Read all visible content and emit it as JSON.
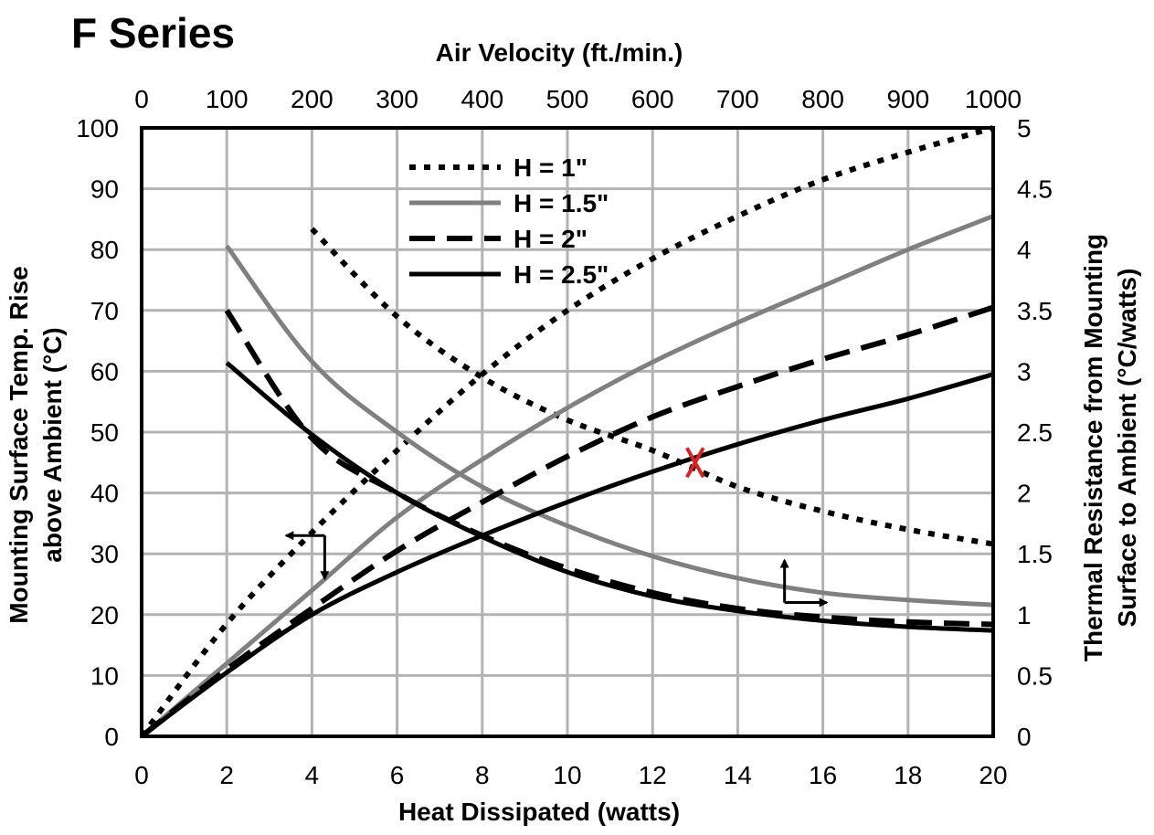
{
  "chart_data": {
    "type": "line",
    "title": "F Series",
    "x_bottom": {
      "label": "Heat Dissipated (watts)",
      "range": [
        0,
        20
      ],
      "ticks": [
        0,
        2,
        4,
        6,
        8,
        10,
        12,
        14,
        16,
        18,
        20
      ]
    },
    "x_top": {
      "label": "Air Velocity (ft./min.)",
      "range": [
        0,
        1000
      ],
      "ticks": [
        0,
        100,
        200,
        300,
        400,
        500,
        600,
        700,
        800,
        900,
        1000
      ]
    },
    "y_left": {
      "label_line1": "Mounting Surface Temp. Rise",
      "label_line2": "above Ambient (°C)",
      "range": [
        0,
        100
      ],
      "ticks": [
        0,
        10,
        20,
        30,
        40,
        50,
        60,
        70,
        80,
        90,
        100
      ]
    },
    "y_right": {
      "label_line1": "Thermal Resistance from Mounting",
      "label_line2": "Surface to Ambient (°C/watts)",
      "range": [
        0,
        5
      ],
      "ticks": [
        "0",
        "0.5",
        "1",
        "1.5",
        "2",
        "2.5",
        "3",
        "3.5",
        "4",
        "4.5",
        "5"
      ]
    },
    "grid": true,
    "legend_position": "top-center",
    "series": [
      {
        "name": "H = 1\"",
        "style": "dotted",
        "color": "#000000",
        "temp_rise": {
          "x_axis": "Heat Dissipated (watts)",
          "x": [
            0,
            2,
            4,
            6,
            8,
            10,
            12,
            14,
            16,
            18,
            20
          ],
          "y": [
            0,
            18.5,
            33.5,
            47,
            59.5,
            70,
            78.5,
            85.5,
            91.5,
            96,
            100
          ]
        },
        "thermal_resistance": {
          "x_axis": "Air Velocity (ft./min.)",
          "x": [
            200,
            300,
            400,
            500,
            600,
            700,
            800,
            900,
            1000
          ],
          "y": [
            4.17,
            3.45,
            2.95,
            2.6,
            2.35,
            2.05,
            1.85,
            1.7,
            1.58
          ]
        }
      },
      {
        "name": "H = 1.5\"",
        "style": "solid-gray",
        "color": "#808080",
        "temp_rise": {
          "x_axis": "Heat Dissipated (watts)",
          "x": [
            0,
            2,
            4,
            6,
            8,
            10,
            12,
            14,
            16,
            18,
            20
          ],
          "y": [
            0,
            12,
            24,
            36,
            45.5,
            54,
            61.5,
            68,
            74,
            80,
            85.5
          ]
        },
        "thermal_resistance": {
          "x_axis": "Air Velocity (ft./min.)",
          "x": [
            100,
            200,
            300,
            400,
            500,
            600,
            700,
            800,
            900,
            1000
          ],
          "y": [
            4.03,
            3.08,
            2.5,
            2.05,
            1.73,
            1.48,
            1.3,
            1.18,
            1.12,
            1.08
          ]
        }
      },
      {
        "name": "H = 2\"",
        "style": "dashed",
        "color": "#000000",
        "temp_rise": {
          "x_axis": "Heat Dissipated (watts)",
          "x": [
            0,
            2,
            4,
            6,
            8,
            10,
            12,
            14,
            16,
            18,
            20
          ],
          "y": [
            0,
            11,
            21,
            30.5,
            38.5,
            46,
            52.5,
            57.5,
            62,
            66,
            70.5
          ]
        },
        "thermal_resistance": {
          "x_axis": "Air Velocity (ft./min.)",
          "x": [
            100,
            200,
            300,
            400,
            500,
            600,
            700,
            800,
            900,
            1000
          ],
          "y": [
            3.5,
            2.45,
            2.0,
            1.65,
            1.38,
            1.18,
            1.05,
            0.98,
            0.94,
            0.92
          ]
        }
      },
      {
        "name": "H = 2.5\"",
        "style": "solid-black",
        "color": "#000000",
        "temp_rise": {
          "x_axis": "Heat Dissipated (watts)",
          "x": [
            0,
            2,
            4,
            6,
            8,
            10,
            12,
            14,
            16,
            18,
            20
          ],
          "y": [
            0,
            10.5,
            20,
            27,
            33,
            38.5,
            43.5,
            48,
            52,
            55.5,
            59.5
          ]
        },
        "thermal_resistance": {
          "x_axis": "Air Velocity (ft./min.)",
          "x": [
            100,
            200,
            300,
            400,
            500,
            600,
            700,
            800,
            900,
            1000
          ],
          "y": [
            3.07,
            2.48,
            2.0,
            1.64,
            1.35,
            1.15,
            1.03,
            0.95,
            0.9,
            0.87
          ]
        }
      }
    ],
    "annotations": [
      {
        "type": "arrow-marker",
        "meaning": "curves read against left axis and bottom axis",
        "at": {
          "x": 4.3,
          "y": 33
        }
      },
      {
        "type": "arrow-marker",
        "meaning": "curves read against right axis and top axis",
        "at": {
          "x": 15.1,
          "y": 28
        }
      },
      {
        "type": "x-mark",
        "color": "#e02020",
        "at": {
          "x": 13,
          "y": 45
        }
      }
    ]
  }
}
